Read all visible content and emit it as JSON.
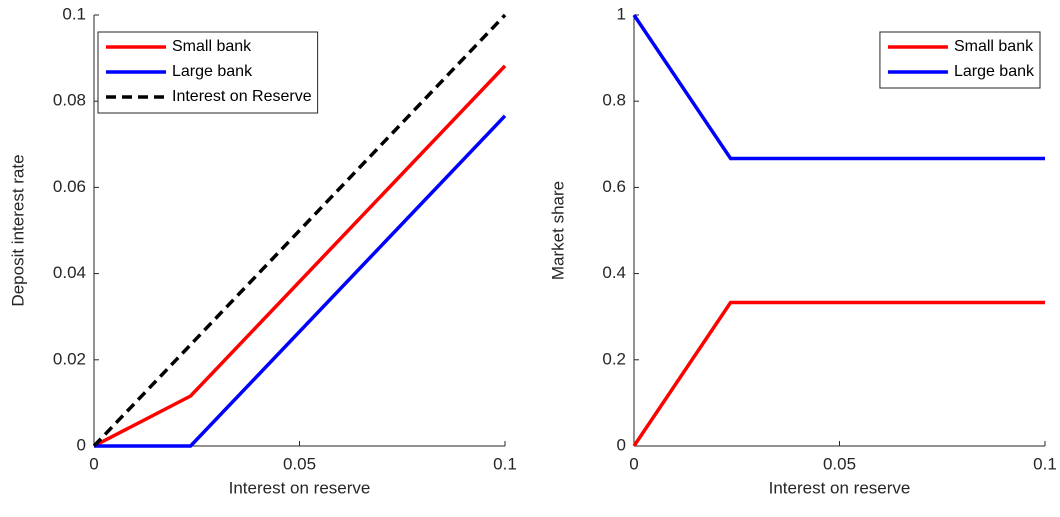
{
  "chart_data": [
    {
      "type": "line",
      "xlabel": "Interest on reserve",
      "ylabel": "Deposit interest rate",
      "x": [
        0,
        0.0235,
        0.1
      ],
      "series": [
        {
          "name": "Small bank",
          "color": "#ff0000",
          "values": [
            0,
            0.0116,
            0.0882
          ]
        },
        {
          "name": "Large bank",
          "color": "#0000ff",
          "values": [
            0,
            0,
            0.0766
          ]
        },
        {
          "name": "Interest on Reserve",
          "color": "#000000",
          "dashed": true,
          "values": [
            0,
            0.0235,
            0.1
          ]
        }
      ],
      "xlim": [
        0,
        0.1
      ],
      "ylim": [
        0,
        0.1
      ],
      "xticks": [
        0,
        0.05,
        0.1
      ],
      "yticks": [
        0,
        0.02,
        0.04,
        0.06,
        0.08,
        0.1
      ],
      "legend": "northwest"
    },
    {
      "type": "line",
      "xlabel": "Interest on reserve",
      "ylabel": "Market share",
      "x": [
        0,
        0.0235,
        0.1
      ],
      "series": [
        {
          "name": "Small bank",
          "color": "#ff0000",
          "values": [
            0,
            0.333,
            0.333
          ]
        },
        {
          "name": "Large bank",
          "color": "#0000ff",
          "values": [
            1,
            0.667,
            0.667
          ]
        }
      ],
      "xlim": [
        0,
        0.1
      ],
      "ylim": [
        0,
        1
      ],
      "xticks": [
        0,
        0.05,
        0.1
      ],
      "yticks": [
        0,
        0.2,
        0.4,
        0.6,
        0.8,
        1
      ],
      "legend": "northeast"
    }
  ]
}
